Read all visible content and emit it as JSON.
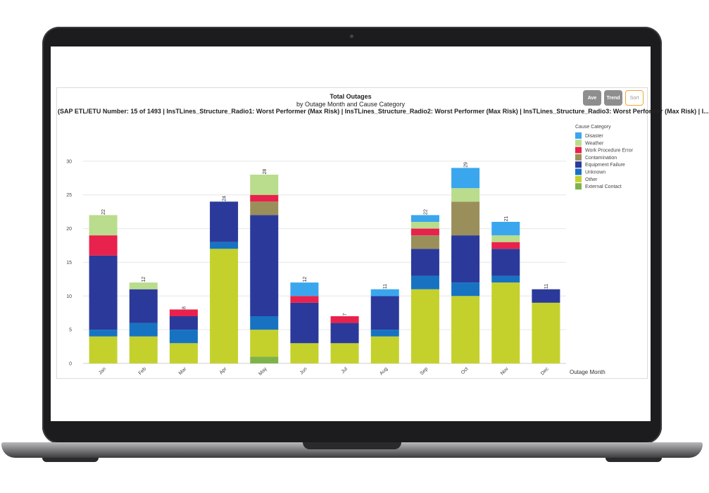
{
  "chart_data": {
    "type": "bar",
    "stacked": true,
    "title": "Total Outages",
    "subtitle": "by Outage Month and Cause Category",
    "filter_text": "(SAP ETL/ETU Number: 15 of 1493 | InsTLines_Structure_Radio1: Worst Performer (Max Risk) | InsTLines_Structure_Radio2: Worst Performer (Max Risk) | InsTLines_Structure_Radio3: Worst Performer (Max Risk) | I...",
    "xlabel": "Outage Month",
    "ylabel": "",
    "ylim": [
      0,
      35
    ],
    "yticks": [
      0,
      5,
      10,
      15,
      20,
      25,
      30
    ],
    "grid": true,
    "legend_title": "Cause Category",
    "legend_position": "right",
    "categories": [
      "Jan",
      "Feb",
      "Mar",
      "Apr",
      "May",
      "Jun",
      "Jul",
      "Aug",
      "Sep",
      "Oct",
      "Nov",
      "Dec"
    ],
    "totals": [
      22,
      12,
      8,
      24,
      28,
      12,
      7,
      11,
      22,
      29,
      21,
      11
    ],
    "series": [
      {
        "name": "External Contact",
        "color": "#7fb34a",
        "values": [
          0,
          0,
          0,
          0,
          1,
          0,
          0,
          0,
          0,
          0,
          0,
          0
        ]
      },
      {
        "name": "Other",
        "color": "#c4d12c",
        "values": [
          4,
          4,
          3,
          17,
          4,
          3,
          3,
          4,
          11,
          10,
          12,
          9
        ]
      },
      {
        "name": "Unknown",
        "color": "#1773c2",
        "values": [
          1,
          2,
          2,
          1,
          2,
          0,
          0,
          1,
          2,
          2,
          1,
          0
        ]
      },
      {
        "name": "Equipment Failure",
        "color": "#2b3a9a",
        "values": [
          11,
          5,
          2,
          6,
          15,
          6,
          3,
          5,
          4,
          7,
          4,
          2
        ]
      },
      {
        "name": "Contamination",
        "color": "#9a8f5a",
        "values": [
          0,
          0,
          0,
          0,
          2,
          0,
          0,
          0,
          2,
          5,
          0,
          0
        ]
      },
      {
        "name": "Work Procedure Error",
        "color": "#e8224c",
        "values": [
          3,
          0,
          1,
          0,
          1,
          1,
          1,
          0,
          1,
          0,
          1,
          0
        ]
      },
      {
        "name": "Weather",
        "color": "#b9dd8c",
        "values": [
          3,
          1,
          0,
          0,
          3,
          0,
          0,
          0,
          1,
          2,
          1,
          0
        ]
      },
      {
        "name": "Disaster",
        "color": "#3aa6ee",
        "values": [
          0,
          0,
          0,
          0,
          0,
          2,
          0,
          1,
          1,
          3,
          2,
          0
        ]
      }
    ],
    "legend_order": [
      "Disaster",
      "Weather",
      "Work Procedure Error",
      "Contamination",
      "Equipment Failure",
      "Unknown",
      "Other",
      "External Contact"
    ]
  },
  "buttons": {
    "ave": "Ave",
    "trend": "Trend",
    "sort": "Sort"
  }
}
